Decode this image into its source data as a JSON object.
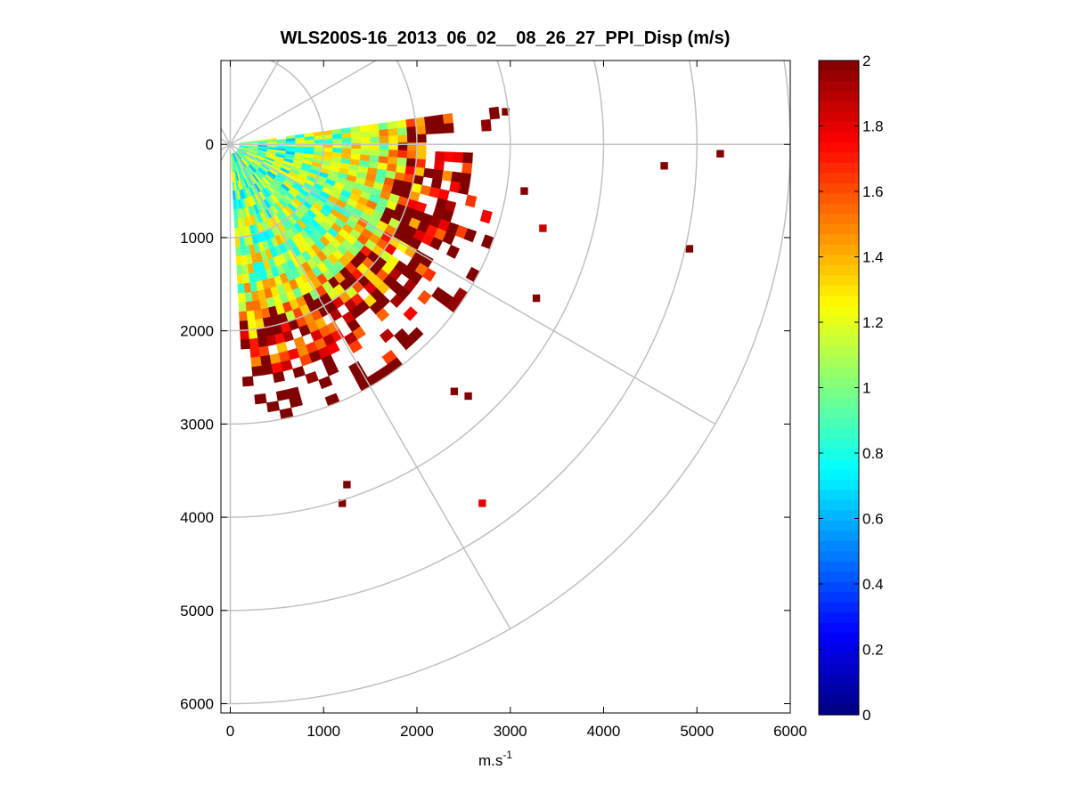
{
  "chart_data": {
    "type": "heatmap",
    "subtype": "polar-ppi",
    "title": "WLS200S-16_2013_06_02__08_26_27_PPI_Disp (m/s)",
    "xlabel": "m.s",
    "xlabel_superscript": "-1",
    "ylabel": "",
    "xlim": [
      -100,
      6000
    ],
    "ylim": [
      6100,
      -900
    ],
    "x_ticks": [
      0,
      1000,
      2000,
      3000,
      4000,
      5000,
      6000
    ],
    "x_tick_labels": [
      "0",
      "1000",
      "2000",
      "3000",
      "4000",
      "5000",
      "6000"
    ],
    "y_ticks": [
      0,
      1000,
      2000,
      3000,
      4000,
      5000,
      6000
    ],
    "y_tick_labels": [
      "0",
      "1000",
      "2000",
      "3000",
      "4000",
      "5000",
      "6000"
    ],
    "polar_grid": {
      "range_rings": [
        1000,
        2000,
        3000,
        4000,
        5000,
        6000
      ],
      "radial_lines_deg": [
        0,
        30,
        60,
        90,
        120,
        150
      ],
      "color": "#c0c0c0"
    },
    "scan": {
      "azimuth_range_deg": [
        0,
        85
      ],
      "range_gate_m": 100,
      "max_range_m": 6000
    },
    "colorbar": {
      "colormap": "jet",
      "min": 0,
      "max": 2,
      "ticks": [
        0,
        0.2,
        0.4,
        0.6,
        0.8,
        1,
        1.2,
        1.4,
        1.6,
        1.8,
        2
      ],
      "tick_labels": [
        "0",
        "0.2",
        "0.4",
        "0.6",
        "0.8",
        "1",
        "1.2",
        "1.4",
        "1.6",
        "1.8",
        "2"
      ]
    },
    "radial_value_profile": [
      {
        "range_m": 500,
        "dispersion": 0.95
      },
      {
        "range_m": 1000,
        "dispersion": 1.05
      },
      {
        "range_m": 1500,
        "dispersion": 1.15
      },
      {
        "range_m": 2000,
        "dispersion": 1.5
      },
      {
        "range_m": 2500,
        "dispersion": 1.9
      },
      {
        "range_m": 3000,
        "dispersion": 2.0
      }
    ],
    "isolated_cells": [
      {
        "x": 2700,
        "y": 3850,
        "value": 1.8
      },
      {
        "x": 3350,
        "y": 900,
        "value": 1.85
      },
      {
        "x": 3280,
        "y": 1650,
        "value": 2.0
      },
      {
        "x": 4650,
        "y": 230,
        "value": 2.0
      },
      {
        "x": 4920,
        "y": 1120,
        "value": 2.0
      },
      {
        "x": 5250,
        "y": 100,
        "value": 2.0
      },
      {
        "x": 2950,
        "y": -350,
        "value": 2.0
      },
      {
        "x": 3150,
        "y": 500,
        "value": 2.0
      },
      {
        "x": 2550,
        "y": 2700,
        "value": 2.0
      },
      {
        "x": 2400,
        "y": 2650,
        "value": 2.0
      },
      {
        "x": 1200,
        "y": 3850,
        "value": 2.0
      },
      {
        "x": 1250,
        "y": 3650,
        "value": 2.0
      },
      {
        "x": 600,
        "y": 2900,
        "value": 2.0
      }
    ]
  }
}
